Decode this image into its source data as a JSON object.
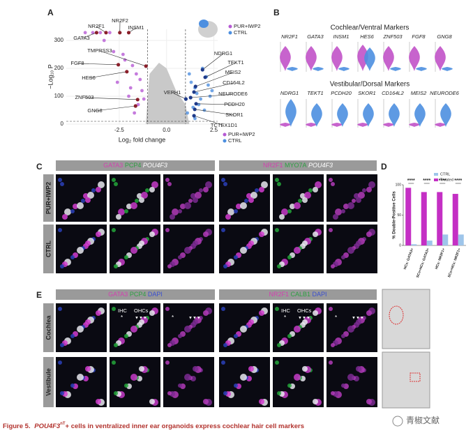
{
  "panels": {
    "A": "A",
    "B": "B",
    "C": "C",
    "D": "D",
    "E": "E"
  },
  "chart_data": [
    {
      "type": "scatter",
      "x_label": "Log₂ fold change",
      "y_label": "−Log₁₀ P",
      "xlim": [
        -5.3,
        2.7
      ],
      "ylim": [
        0,
        340
      ],
      "xticks": [
        {
          "value": -2.5,
          "label": "-2.5"
        },
        {
          "value": 0,
          "label": "0.0"
        },
        {
          "value": 2.5,
          "label": "2.5"
        }
      ],
      "yticks": [
        0,
        100,
        200,
        300
      ],
      "x_cutoffs": [
        -1,
        1
      ],
      "y_cutoff": 10,
      "series": [
        {
          "name": "PUR+IWP2",
          "color": "#b65ad4",
          "x": [
            -4.3,
            -3.9,
            -3.5,
            -3.0,
            -2.8,
            -2.3,
            -2.2,
            -1.8,
            -1.6,
            -1.4,
            -1.3,
            -1.2,
            -2.6,
            -1.9,
            -1.5,
            -3.3,
            -2.0,
            -1.7
          ],
          "values": [
            328,
            328,
            328,
            328,
            260,
            250,
            230,
            210,
            180,
            160,
            120,
            90,
            150,
            130,
            70,
            300,
            100,
            40
          ]
        },
        {
          "name": "CTRL",
          "color": "#4d8fe0",
          "x": [
            1.2,
            1.3,
            1.5,
            1.6,
            1.8,
            1.9,
            2.1,
            2.2,
            2.4,
            1.4,
            1.7,
            2.0,
            1.1,
            2.3,
            1.5
          ],
          "values": [
            180,
            150,
            130,
            110,
            90,
            200,
            170,
            140,
            120,
            60,
            70,
            50,
            40,
            100,
            20
          ]
        }
      ],
      "genes": [
        {
          "name": "NR2F1",
          "x": -3.2,
          "y": 328
        },
        {
          "name": "NR2F2",
          "x": -2.47,
          "y": 328
        },
        {
          "name": "INSM1",
          "x": -2.0,
          "y": 328
        },
        {
          "name": "GATA3",
          "x": -3.7,
          "y": 328
        },
        {
          "name": "TMPRSS3",
          "x": -1.09,
          "y": 208
        },
        {
          "name": "FGF8",
          "x": -2.55,
          "y": 213
        },
        {
          "name": "HES6",
          "x": -2.1,
          "y": 188
        },
        {
          "name": "ZNF503",
          "x": -1.53,
          "y": 88
        },
        {
          "name": "GNG8",
          "x": -1.64,
          "y": 65
        },
        {
          "name": "NDRG1",
          "x": 1.9,
          "y": 195
        },
        {
          "name": "TEKT1",
          "x": 2.04,
          "y": 168
        },
        {
          "name": "MEIS2",
          "x": 1.53,
          "y": 135
        },
        {
          "name": "CD164L2",
          "x": 1.45,
          "y": 115
        },
        {
          "name": "NEURODE6",
          "x": 1.27,
          "y": 95
        },
        {
          "name": "PCDH20",
          "x": 1.56,
          "y": 73
        },
        {
          "name": "VEPH1",
          "x": 1.02,
          "y": 90
        },
        {
          "name": "SKOR1",
          "x": 1.49,
          "y": 53
        },
        {
          "name": "TCTEX1D1",
          "x": 1.45,
          "y": 30
        }
      ]
    },
    {
      "type": "bar",
      "y_label": "% Double-Positive Cells",
      "categories": [
        "HCs: GATA3+",
        "SCs+HCs: GATA3+",
        "HCs: NR2F1+",
        "SCs+HCs: NR2F1+"
      ],
      "ylim": [
        0,
        100
      ],
      "yticks": [
        0,
        50,
        100
      ],
      "series": [
        {
          "name": "CTRL",
          "color": "#9ec5ea",
          "values": [
            2,
            8,
            18,
            18
          ]
        },
        {
          "name": "Treated",
          "color": "#c42fc4",
          "values": [
            95,
            88,
            88,
            85
          ]
        }
      ],
      "significance": [
        "****",
        "****",
        "****",
        "****"
      ]
    }
  ],
  "violins": {
    "cochlear_title": "Cochlear/Ventral Markers",
    "cochlear_genes": [
      "NR2F1",
      "GATA3",
      "INSM1",
      "HES6",
      "ZNF503",
      "FGF8",
      "GNG8"
    ],
    "vestibular_title": "Vestibular/Dorsal Markers",
    "vestibular_genes": [
      "NDRG1",
      "TEKT1",
      "PCDH20",
      "SKOR1",
      "CD164L2",
      "MEIS2",
      "NEURODE6"
    ]
  },
  "panel_c": {
    "left_header": [
      {
        "text": "GATA3",
        "color": "#d43fb0"
      },
      {
        "text": " PCP4",
        "color": "#2ea043"
      },
      {
        "text": " POU4F3",
        "color": "#fff"
      }
    ],
    "right_header": [
      {
        "text": "NR2F1",
        "color": "#d43fb0"
      },
      {
        "text": " MYO7A",
        "color": "#2ea043"
      },
      {
        "text": " POU4F3",
        "color": "#fff"
      }
    ],
    "rows": [
      "PUR+IWP2",
      "CTRL"
    ]
  },
  "panel_e": {
    "left_header": [
      {
        "text": "GATA3",
        "color": "#d43fb0"
      },
      {
        "text": " PCP4",
        "color": "#2ea043"
      },
      {
        "text": " DAPI",
        "color": "#3a4fd0"
      }
    ],
    "right_header": [
      {
        "text": "NR2F1",
        "color": "#d43fb0"
      },
      {
        "text": " CALB1",
        "color": "#2ea043"
      },
      {
        "text": " DAPI",
        "color": "#3a4fd0"
      }
    ],
    "rows": [
      "Cochlea",
      "Vestibule"
    ],
    "ihc": "IHC",
    "ohcs": "OHCs",
    "star": "*",
    "arrows": "▼▼▼"
  },
  "caption": {
    "figure": "Figure 5.",
    "gene": "POU4F3",
    "sup": "nT",
    "rest": "+ cells in ventralized inner ear organoids express cochlear hair cell markers"
  },
  "watermark": "青椒文献"
}
